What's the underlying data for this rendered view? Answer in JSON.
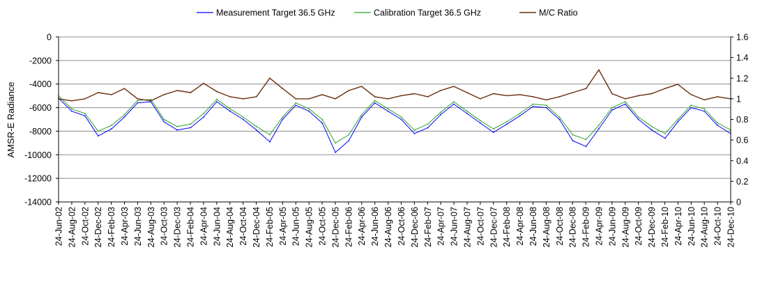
{
  "chart_data": {
    "type": "line",
    "title": "",
    "ylabel": "AMSR-E Radiance",
    "y2label": "",
    "xlabel": "",
    "ylim": [
      -14000,
      0
    ],
    "y2lim": [
      0,
      1.6
    ],
    "y_ticks": [
      0,
      -2000,
      -4000,
      -6000,
      -8000,
      -10000,
      -12000,
      -14000
    ],
    "y2_ticks": [
      0,
      0.2,
      0.4,
      0.6,
      0.8,
      1,
      1.2,
      1.4,
      1.6
    ],
    "grid": true,
    "legend_position": "top",
    "x_ticks": [
      "24-Jun-02",
      "24-Aug-02",
      "24-Oct-02",
      "24-Dec-02",
      "24-Feb-03",
      "24-Apr-03",
      "24-Jun-03",
      "24-Aug-03",
      "24-Oct-03",
      "24-Dec-03",
      "24-Feb-04",
      "24-Apr-04",
      "24-Jun-04",
      "24-Aug-04",
      "24-Oct-04",
      "24-Dec-04",
      "24-Feb-05",
      "24-Apr-05",
      "24-Jun-05",
      "24-Aug-05",
      "24-Oct-05",
      "24-Dec-05",
      "24-Feb-06",
      "24-Apr-06",
      "24-Jun-06",
      "24-Aug-06",
      "24-Oct-06",
      "24-Dec-06",
      "24-Feb-07",
      "24-Apr-07",
      "24-Jun-07",
      "24-Aug-07",
      "24-Oct-07",
      "24-Dec-07",
      "24-Feb-08",
      "24-Apr-08",
      "24-Jun-08",
      "24-Aug-08",
      "24-Oct-08",
      "24-Dec-08",
      "24-Feb-09",
      "24-Apr-09",
      "24-Jun-09",
      "24-Aug-09",
      "24-Oct-09",
      "24-Dec-09",
      "24-Feb-10",
      "24-Apr-10",
      "24-Jun-10",
      "24-Aug-10",
      "24-Oct-10",
      "24-Dec-10"
    ],
    "series": [
      {
        "name": "Measurement Target 36.5 GHz",
        "axis": "left",
        "color": "#0000ff",
        "points": [
          [
            "2002-06-24",
            -5200
          ],
          [
            "2002-08-24",
            -6300
          ],
          [
            "2002-10-24",
            -6700
          ],
          [
            "2002-12-24",
            -8400
          ],
          [
            "2003-02-24",
            -7800
          ],
          [
            "2003-04-24",
            -6800
          ],
          [
            "2003-06-24",
            -5600
          ],
          [
            "2003-08-24",
            -5500
          ],
          [
            "2003-10-24",
            -7200
          ],
          [
            "2003-12-24",
            -7900
          ],
          [
            "2004-02-24",
            -7700
          ],
          [
            "2004-04-24",
            -6800
          ],
          [
            "2004-06-24",
            -5500
          ],
          [
            "2004-08-24",
            -6300
          ],
          [
            "2004-10-24",
            -7000
          ],
          [
            "2004-12-24",
            -7900
          ],
          [
            "2005-02-24",
            -8900
          ],
          [
            "2005-04-24",
            -7000
          ],
          [
            "2005-06-24",
            -5800
          ],
          [
            "2005-08-24",
            -6300
          ],
          [
            "2005-10-24",
            -7300
          ],
          [
            "2005-12-24",
            -9800
          ],
          [
            "2006-02-24",
            -8800
          ],
          [
            "2006-04-24",
            -6800
          ],
          [
            "2006-06-24",
            -5600
          ],
          [
            "2006-08-24",
            -6300
          ],
          [
            "2006-10-24",
            -7000
          ],
          [
            "2006-12-24",
            -8200
          ],
          [
            "2007-02-24",
            -7700
          ],
          [
            "2007-04-24",
            -6600
          ],
          [
            "2007-06-24",
            -5700
          ],
          [
            "2007-08-24",
            -6500
          ],
          [
            "2007-10-24",
            -7300
          ],
          [
            "2007-12-24",
            -8100
          ],
          [
            "2008-02-24",
            -7400
          ],
          [
            "2008-04-24",
            -6700
          ],
          [
            "2008-06-24",
            -5900
          ],
          [
            "2008-08-24",
            -6000
          ],
          [
            "2008-10-24",
            -7000
          ],
          [
            "2008-12-24",
            -8800
          ],
          [
            "2009-02-24",
            -9300
          ],
          [
            "2009-04-24",
            -7800
          ],
          [
            "2009-06-24",
            -6200
          ],
          [
            "2009-08-24",
            -5700
          ],
          [
            "2009-10-24",
            -7000
          ],
          [
            "2009-12-24",
            -7900
          ],
          [
            "2010-02-24",
            -8600
          ],
          [
            "2010-04-24",
            -7200
          ],
          [
            "2010-06-24",
            -6000
          ],
          [
            "2010-08-24",
            -6300
          ],
          [
            "2010-10-24",
            -7500
          ],
          [
            "2010-12-24",
            -8200
          ]
        ]
      },
      {
        "name": "Calibration Target 36.5 GHz",
        "axis": "left",
        "color": "#2ca02c",
        "points": [
          [
            "2002-06-24",
            -5000
          ],
          [
            "2002-08-24",
            -6100
          ],
          [
            "2002-10-24",
            -6500
          ],
          [
            "2002-12-24",
            -8000
          ],
          [
            "2003-02-24",
            -7500
          ],
          [
            "2003-04-24",
            -6600
          ],
          [
            "2003-06-24",
            -5400
          ],
          [
            "2003-08-24",
            -5300
          ],
          [
            "2003-10-24",
            -7000
          ],
          [
            "2003-12-24",
            -7600
          ],
          [
            "2004-02-24",
            -7400
          ],
          [
            "2004-04-24",
            -6500
          ],
          [
            "2004-06-24",
            -5300
          ],
          [
            "2004-08-24",
            -6100
          ],
          [
            "2004-10-24",
            -6800
          ],
          [
            "2004-12-24",
            -7600
          ],
          [
            "2005-02-24",
            -8300
          ],
          [
            "2005-04-24",
            -6800
          ],
          [
            "2005-06-24",
            -5600
          ],
          [
            "2005-08-24",
            -6100
          ],
          [
            "2005-10-24",
            -7000
          ],
          [
            "2005-12-24",
            -9000
          ],
          [
            "2006-02-24",
            -8300
          ],
          [
            "2006-04-24",
            -6600
          ],
          [
            "2006-06-24",
            -5400
          ],
          [
            "2006-08-24",
            -6100
          ],
          [
            "2006-10-24",
            -6800
          ],
          [
            "2006-12-24",
            -7900
          ],
          [
            "2007-02-24",
            -7400
          ],
          [
            "2007-04-24",
            -6400
          ],
          [
            "2007-06-24",
            -5500
          ],
          [
            "2007-08-24",
            -6300
          ],
          [
            "2007-10-24",
            -7100
          ],
          [
            "2007-12-24",
            -7800
          ],
          [
            "2008-02-24",
            -7200
          ],
          [
            "2008-04-24",
            -6500
          ],
          [
            "2008-06-24",
            -5700
          ],
          [
            "2008-08-24",
            -5800
          ],
          [
            "2008-10-24",
            -6800
          ],
          [
            "2008-12-24",
            -8300
          ],
          [
            "2009-02-24",
            -8700
          ],
          [
            "2009-04-24",
            -7500
          ],
          [
            "2009-06-24",
            -6000
          ],
          [
            "2009-08-24",
            -5500
          ],
          [
            "2009-10-24",
            -6800
          ],
          [
            "2009-12-24",
            -7600
          ],
          [
            "2010-02-24",
            -8200
          ],
          [
            "2010-04-24",
            -7000
          ],
          [
            "2010-06-24",
            -5800
          ],
          [
            "2010-08-24",
            -6100
          ],
          [
            "2010-10-24",
            -7300
          ],
          [
            "2010-12-24",
            -7900
          ]
        ]
      },
      {
        "name": "M/C Ratio",
        "axis": "right",
        "color": "#6b2d0f",
        "points": [
          [
            "2002-06-24",
            1.0
          ],
          [
            "2002-08-24",
            0.98
          ],
          [
            "2002-10-24",
            1.0
          ],
          [
            "2002-12-24",
            1.06
          ],
          [
            "2003-02-24",
            1.04
          ],
          [
            "2003-04-24",
            1.1
          ],
          [
            "2003-06-24",
            1.0
          ],
          [
            "2003-08-24",
            0.98
          ],
          [
            "2003-10-24",
            1.04
          ],
          [
            "2003-12-24",
            1.08
          ],
          [
            "2004-02-24",
            1.06
          ],
          [
            "2004-04-24",
            1.15
          ],
          [
            "2004-06-24",
            1.07
          ],
          [
            "2004-08-24",
            1.02
          ],
          [
            "2004-10-24",
            1.0
          ],
          [
            "2004-12-24",
            1.02
          ],
          [
            "2005-02-24",
            1.2
          ],
          [
            "2005-04-24",
            1.1
          ],
          [
            "2005-06-24",
            1.0
          ],
          [
            "2005-08-24",
            1.0
          ],
          [
            "2005-10-24",
            1.04
          ],
          [
            "2005-12-24",
            1.0
          ],
          [
            "2006-02-24",
            1.08
          ],
          [
            "2006-04-24",
            1.12
          ],
          [
            "2006-06-24",
            1.02
          ],
          [
            "2006-08-24",
            1.0
          ],
          [
            "2006-10-24",
            1.03
          ],
          [
            "2006-12-24",
            1.05
          ],
          [
            "2007-02-24",
            1.02
          ],
          [
            "2007-04-24",
            1.08
          ],
          [
            "2007-06-24",
            1.12
          ],
          [
            "2007-08-24",
            1.06
          ],
          [
            "2007-10-24",
            1.0
          ],
          [
            "2007-12-24",
            1.05
          ],
          [
            "2008-02-24",
            1.03
          ],
          [
            "2008-04-24",
            1.04
          ],
          [
            "2008-06-24",
            1.02
          ],
          [
            "2008-08-24",
            0.99
          ],
          [
            "2008-10-24",
            1.02
          ],
          [
            "2008-12-24",
            1.06
          ],
          [
            "2009-02-24",
            1.1
          ],
          [
            "2009-04-24",
            1.28
          ],
          [
            "2009-06-24",
            1.05
          ],
          [
            "2009-08-24",
            1.0
          ],
          [
            "2009-10-24",
            1.03
          ],
          [
            "2009-12-24",
            1.05
          ],
          [
            "2010-02-24",
            1.1
          ],
          [
            "2010-04-24",
            1.14
          ],
          [
            "2010-06-24",
            1.04
          ],
          [
            "2010-08-24",
            0.99
          ],
          [
            "2010-10-24",
            1.02
          ],
          [
            "2010-12-24",
            1.0
          ]
        ]
      }
    ]
  }
}
